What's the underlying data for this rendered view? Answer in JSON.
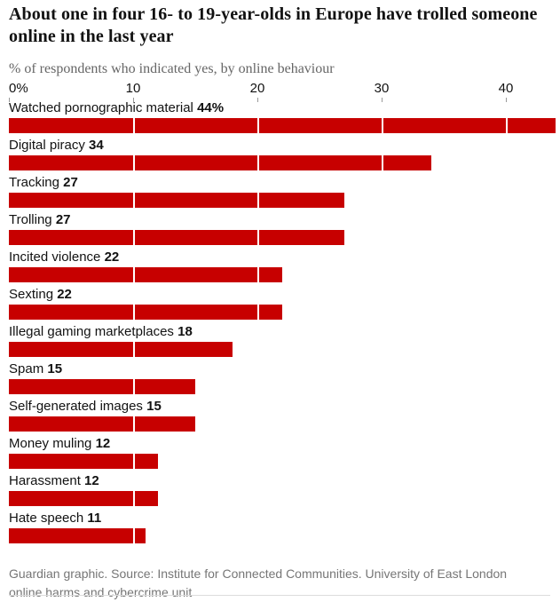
{
  "title": "About one in four 16- to 19-year-olds in Europe have trolled someone online in the last year",
  "subtitle": "% of respondents who indicated yes, by online behaviour",
  "axis": {
    "ticks": [
      {
        "label": "0%",
        "value": 0
      },
      {
        "label": "10",
        "value": 10
      },
      {
        "label": "20",
        "value": 20
      },
      {
        "label": "30",
        "value": 30
      },
      {
        "label": "40",
        "value": 40
      }
    ]
  },
  "chart_data": {
    "type": "bar",
    "orientation": "horizontal",
    "title": "About one in four 16- to 19-year-olds in Europe have trolled someone online in the last year",
    "subtitle": "% of respondents who indicated yes, by online behaviour",
    "categories": [
      "Watched pornographic material",
      "Digital piracy",
      "Tracking",
      "Trolling",
      "Incited violence",
      "Sexting",
      "Illegal gaming marketplaces",
      "Spam",
      "Self-generated images",
      "Money muling",
      "Harassment",
      "Hate speech"
    ],
    "values": [
      44,
      34,
      27,
      27,
      22,
      22,
      18,
      15,
      15,
      12,
      12,
      11
    ],
    "value_labels": [
      "44%",
      "34",
      "27",
      "27",
      "22",
      "22",
      "18",
      "15",
      "15",
      "12",
      "12",
      "11"
    ],
    "xlabel": "",
    "ylabel": "",
    "xlim": [
      0,
      44
    ],
    "grid": true,
    "gridline_values": [
      10,
      20,
      30,
      40
    ],
    "legend": "none"
  },
  "footer": {
    "source": "Guardian graphic. Source: Institute for Connected Communities. University of East London online harms and cybercrime unit"
  },
  "colors": {
    "bar": "#c70000",
    "title_text": "#121212",
    "subtitle_text": "#666666",
    "label_text": "#121212",
    "footer_text": "#767676",
    "tick": "#999999",
    "gridline_on_bar": "#ffffff",
    "bottom_rule": "#dcdcdc",
    "background": "#ffffff"
  }
}
